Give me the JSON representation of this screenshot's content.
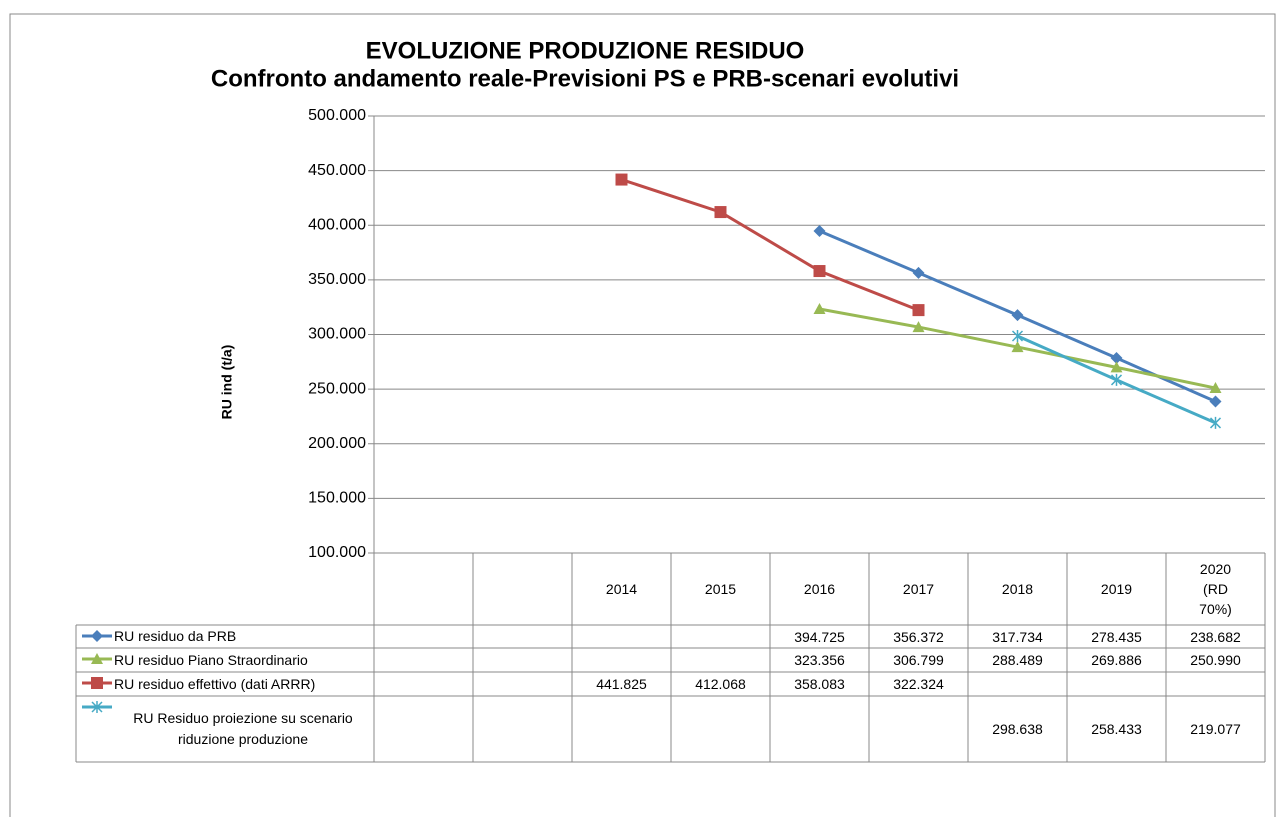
{
  "chart_data": {
    "type": "line",
    "title": "EVOLUZIONE PRODUZIONE RESIDUO",
    "subtitle": "Confronto andamento reale-Previsioni PS e PRB-scenari evolutivi",
    "y_label": "RU ind (t/a)",
    "categories": [
      null,
      null,
      "2014",
      "2015",
      "2016",
      "2017",
      "2018",
      "2019",
      "2020 (RD 70%)"
    ],
    "ylim": [
      100000,
      500000
    ],
    "yticks": [
      {
        "value": 100000,
        "label": "100.000"
      },
      {
        "value": 150000,
        "label": "150.000"
      },
      {
        "value": 200000,
        "label": "200.000"
      },
      {
        "value": 250000,
        "label": "250.000"
      },
      {
        "value": 300000,
        "label": "300.000"
      },
      {
        "value": 350000,
        "label": "350.000"
      },
      {
        "value": 400000,
        "label": "400.000"
      },
      {
        "value": 450000,
        "label": "450.000"
      },
      {
        "value": 500000,
        "label": "500.000"
      }
    ],
    "grid": true,
    "series": [
      {
        "name": "RU residuo da PRB",
        "color": "#4a7ebb",
        "marker": "diamond",
        "values": [
          null,
          null,
          null,
          null,
          394725,
          356372,
          317734,
          278435,
          238682
        ],
        "value_labels": [
          null,
          null,
          null,
          null,
          "394.725",
          "356.372",
          "317.734",
          "278.435",
          "238.682"
        ]
      },
      {
        "name": "RU residuo Piano Straordinario",
        "color": "#98b954",
        "marker": "triangle",
        "values": [
          null,
          null,
          null,
          null,
          323356,
          306799,
          288489,
          269886,
          250990
        ],
        "value_labels": [
          null,
          null,
          null,
          null,
          "323.356",
          "306.799",
          "288.489",
          "269.886",
          "250.990"
        ]
      },
      {
        "name": "RU residuo effettivo (dati ARRR)",
        "color": "#be4b48",
        "marker": "square",
        "values": [
          null,
          null,
          441825,
          412068,
          358083,
          322324,
          null,
          null,
          null
        ],
        "value_labels": [
          null,
          null,
          "441.825",
          "412.068",
          "358.083",
          "322.324",
          null,
          null,
          null
        ]
      },
      {
        "name": "RU Residuo proiezione su scenario riduzione produzione",
        "color": "#46aac5",
        "marker": "asterisk",
        "values": [
          null,
          null,
          null,
          null,
          null,
          null,
          298638,
          258433,
          219077
        ],
        "value_labels": [
          null,
          null,
          null,
          null,
          null,
          null,
          "298.638",
          "258.433",
          "219.077"
        ]
      }
    ]
  }
}
